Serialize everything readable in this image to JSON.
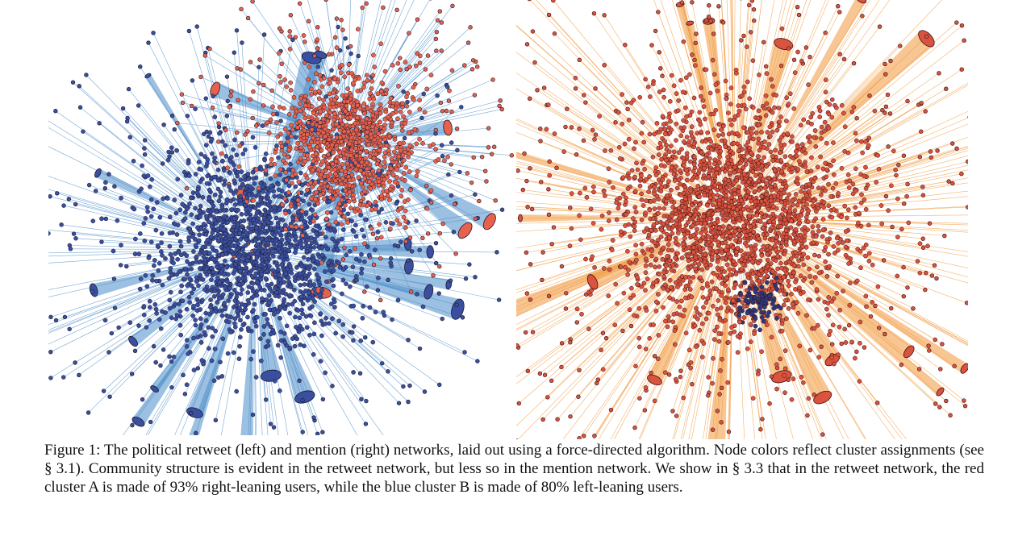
{
  "figure": {
    "left_network": {
      "description_label": "retweet network",
      "colors": {
        "cluster_a": "#e8614c",
        "cluster_b": "#3a4fa0",
        "edge": "#4a8cc8",
        "outline": "#1a1a2e"
      }
    },
    "right_network": {
      "description_label": "mention network",
      "colors": {
        "cluster_a": "#d9533f",
        "cluster_b": "#2a3a80",
        "edge": "#f0973a",
        "outline": "#3a1010"
      }
    }
  },
  "caption": {
    "label": "Figure 1:",
    "text": "The political retweet (left) and mention (right) networks, laid out using a force-directed algorithm. Node colors reflect cluster assignments (see § 3.1). Community structure is evident in the retweet network, but less so in the mention network. We show in § 3.3 that in the retweet network, the red cluster A is made of 93% right-leaning users, while the blue cluster B is made of 80% left-leaning users."
  }
}
